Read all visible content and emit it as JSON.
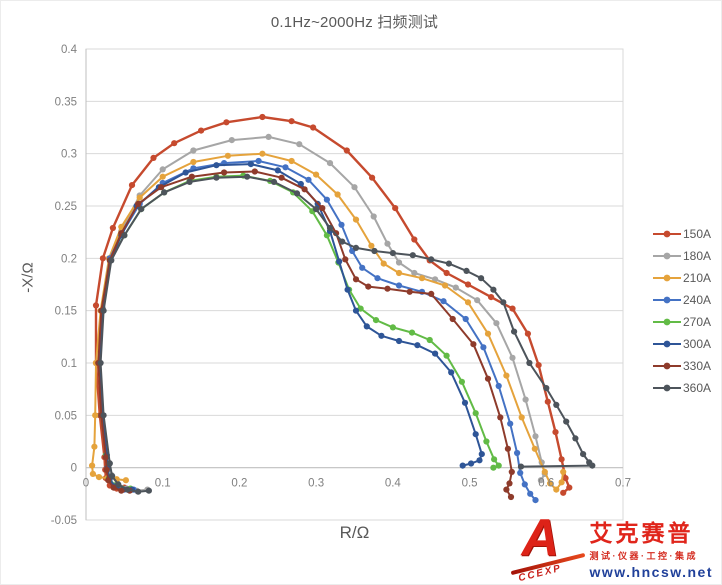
{
  "chart_data": {
    "type": "line",
    "title": "0.1Hz~2000Hz 扫频测试",
    "xlabel": "R/Ω",
    "ylabel": "-X/Ω",
    "xlim": [
      0,
      0.7
    ],
    "ylim": [
      -0.05,
      0.4
    ],
    "x_tick_labels": [
      "0",
      "0.1",
      "0.2",
      "0.3",
      "0.4",
      "0.5",
      "0.6",
      "0.7"
    ],
    "y_tick_labels": [
      "-0.05",
      "0",
      "0.05",
      "0.1",
      "0.15",
      "0.2",
      "0.25",
      "0.3",
      "0.35",
      "0.4"
    ],
    "grid": "horizontal",
    "legend_position": "right",
    "grid_color": "#d9d9d9",
    "axis_color": "#bfbfbf",
    "tick_text_color": "#808080",
    "series": [
      {
        "name": "150A",
        "color": "#c64a2e",
        "points": [
          [
            0.05,
            -0.019
          ],
          [
            0.04,
            -0.02
          ],
          [
            0.031,
            -0.017
          ],
          [
            0.026,
            -0.01
          ],
          [
            0.025,
            -0.002
          ],
          [
            0.024,
            0.01
          ],
          [
            0.018,
            0.05
          ],
          [
            0.013,
            0.1
          ],
          [
            0.013,
            0.155
          ],
          [
            0.022,
            0.2
          ],
          [
            0.035,
            0.229
          ],
          [
            0.06,
            0.27
          ],
          [
            0.088,
            0.296
          ],
          [
            0.115,
            0.31
          ],
          [
            0.15,
            0.322
          ],
          [
            0.183,
            0.33
          ],
          [
            0.23,
            0.335
          ],
          [
            0.268,
            0.331
          ],
          [
            0.296,
            0.325
          ],
          [
            0.34,
            0.303
          ],
          [
            0.373,
            0.277
          ],
          [
            0.403,
            0.248
          ],
          [
            0.428,
            0.218
          ],
          [
            0.448,
            0.198
          ],
          [
            0.47,
            0.186
          ],
          [
            0.498,
            0.175
          ],
          [
            0.528,
            0.163
          ],
          [
            0.556,
            0.152
          ],
          [
            0.576,
            0.128
          ],
          [
            0.59,
            0.098
          ],
          [
            0.602,
            0.063
          ],
          [
            0.612,
            0.034
          ],
          [
            0.62,
            0.008
          ],
          [
            0.625,
            -0.01
          ],
          [
            0.63,
            -0.019
          ],
          [
            0.622,
            -0.024
          ]
        ]
      },
      {
        "name": "180A",
        "color": "#a6a6a6",
        "points": [
          [
            0.08,
            -0.021
          ],
          [
            0.066,
            -0.022
          ],
          [
            0.053,
            -0.02
          ],
          [
            0.041,
            -0.015
          ],
          [
            0.033,
            -0.007
          ],
          [
            0.03,
            0.005
          ],
          [
            0.022,
            0.05
          ],
          [
            0.018,
            0.1
          ],
          [
            0.022,
            0.152
          ],
          [
            0.032,
            0.2
          ],
          [
            0.046,
            0.226
          ],
          [
            0.07,
            0.26
          ],
          [
            0.1,
            0.285
          ],
          [
            0.14,
            0.303
          ],
          [
            0.19,
            0.313
          ],
          [
            0.238,
            0.316
          ],
          [
            0.278,
            0.309
          ],
          [
            0.318,
            0.291
          ],
          [
            0.35,
            0.268
          ],
          [
            0.375,
            0.24
          ],
          [
            0.393,
            0.214
          ],
          [
            0.408,
            0.196
          ],
          [
            0.428,
            0.186
          ],
          [
            0.455,
            0.18
          ],
          [
            0.482,
            0.172
          ],
          [
            0.51,
            0.16
          ],
          [
            0.535,
            0.138
          ],
          [
            0.556,
            0.105
          ],
          [
            0.573,
            0.065
          ],
          [
            0.586,
            0.03
          ],
          [
            0.594,
            0.005
          ],
          [
            0.598,
            -0.006
          ],
          [
            0.593,
            -0.012
          ]
        ]
      },
      {
        "name": "210A",
        "color": "#e5a33c",
        "points": [
          [
            0.052,
            -0.012
          ],
          [
            0.04,
            -0.011
          ],
          [
            0.028,
            -0.01
          ],
          [
            0.017,
            -0.009
          ],
          [
            0.009,
            -0.006
          ],
          [
            0.008,
            0.002
          ],
          [
            0.011,
            0.02
          ],
          [
            0.012,
            0.05
          ],
          [
            0.013,
            0.1
          ],
          [
            0.019,
            0.15
          ],
          [
            0.03,
            0.2
          ],
          [
            0.046,
            0.23
          ],
          [
            0.07,
            0.258
          ],
          [
            0.1,
            0.278
          ],
          [
            0.14,
            0.292
          ],
          [
            0.185,
            0.298
          ],
          [
            0.23,
            0.3
          ],
          [
            0.268,
            0.293
          ],
          [
            0.3,
            0.28
          ],
          [
            0.328,
            0.261
          ],
          [
            0.352,
            0.237
          ],
          [
            0.372,
            0.212
          ],
          [
            0.388,
            0.195
          ],
          [
            0.408,
            0.186
          ],
          [
            0.438,
            0.181
          ],
          [
            0.468,
            0.174
          ],
          [
            0.498,
            0.158
          ],
          [
            0.524,
            0.128
          ],
          [
            0.548,
            0.088
          ],
          [
            0.568,
            0.048
          ],
          [
            0.585,
            0.018
          ],
          [
            0.598,
            -0.004
          ],
          [
            0.605,
            -0.015
          ],
          [
            0.613,
            -0.021
          ],
          [
            0.62,
            -0.014
          ],
          [
            0.622,
            -0.004
          ]
        ]
      },
      {
        "name": "240A",
        "color": "#4472c4",
        "points": [
          [
            0.062,
            -0.021
          ],
          [
            0.05,
            -0.021
          ],
          [
            0.039,
            -0.018
          ],
          [
            0.031,
            -0.011
          ],
          [
            0.028,
            -0.002
          ],
          [
            0.027,
            0.012
          ],
          [
            0.02,
            0.05
          ],
          [
            0.017,
            0.1
          ],
          [
            0.021,
            0.15
          ],
          [
            0.031,
            0.2
          ],
          [
            0.047,
            0.224
          ],
          [
            0.07,
            0.252
          ],
          [
            0.1,
            0.272
          ],
          [
            0.14,
            0.286
          ],
          [
            0.18,
            0.291
          ],
          [
            0.225,
            0.293
          ],
          [
            0.26,
            0.287
          ],
          [
            0.29,
            0.275
          ],
          [
            0.314,
            0.256
          ],
          [
            0.333,
            0.232
          ],
          [
            0.347,
            0.207
          ],
          [
            0.36,
            0.191
          ],
          [
            0.38,
            0.181
          ],
          [
            0.408,
            0.174
          ],
          [
            0.438,
            0.168
          ],
          [
            0.466,
            0.159
          ],
          [
            0.495,
            0.142
          ],
          [
            0.518,
            0.115
          ],
          [
            0.538,
            0.078
          ],
          [
            0.553,
            0.042
          ],
          [
            0.562,
            0.014
          ],
          [
            0.566,
            -0.005
          ],
          [
            0.572,
            -0.016
          ],
          [
            0.579,
            -0.025
          ],
          [
            0.586,
            -0.031
          ]
        ]
      },
      {
        "name": "270A",
        "color": "#62bb46",
        "points": [
          [
            0.058,
            -0.02
          ],
          [
            0.047,
            -0.02
          ],
          [
            0.037,
            -0.017
          ],
          [
            0.03,
            -0.01
          ],
          [
            0.028,
            0.0
          ],
          [
            0.026,
            0.012
          ],
          [
            0.02,
            0.05
          ],
          [
            0.017,
            0.1
          ],
          [
            0.021,
            0.15
          ],
          [
            0.032,
            0.198
          ],
          [
            0.05,
            0.222
          ],
          [
            0.072,
            0.247
          ],
          [
            0.102,
            0.263
          ],
          [
            0.135,
            0.274
          ],
          [
            0.17,
            0.278
          ],
          [
            0.205,
            0.279
          ],
          [
            0.24,
            0.274
          ],
          [
            0.27,
            0.263
          ],
          [
            0.295,
            0.245
          ],
          [
            0.314,
            0.222
          ],
          [
            0.329,
            0.196
          ],
          [
            0.343,
            0.17
          ],
          [
            0.358,
            0.152
          ],
          [
            0.378,
            0.141
          ],
          [
            0.4,
            0.134
          ],
          [
            0.425,
            0.129
          ],
          [
            0.448,
            0.122
          ],
          [
            0.47,
            0.107
          ],
          [
            0.49,
            0.082
          ],
          [
            0.508,
            0.052
          ],
          [
            0.522,
            0.025
          ],
          [
            0.532,
            0.008
          ],
          [
            0.538,
            0.002
          ],
          [
            0.531,
            0.0
          ]
        ]
      },
      {
        "name": "300A",
        "color": "#2e5597",
        "points": [
          [
            0.06,
            -0.021
          ],
          [
            0.048,
            -0.021
          ],
          [
            0.038,
            -0.018
          ],
          [
            0.03,
            -0.011
          ],
          [
            0.028,
            0.0
          ],
          [
            0.027,
            0.012
          ],
          [
            0.021,
            0.05
          ],
          [
            0.018,
            0.1
          ],
          [
            0.022,
            0.15
          ],
          [
            0.032,
            0.198
          ],
          [
            0.046,
            0.222
          ],
          [
            0.066,
            0.25
          ],
          [
            0.095,
            0.268
          ],
          [
            0.13,
            0.282
          ],
          [
            0.17,
            0.289
          ],
          [
            0.215,
            0.29
          ],
          [
            0.25,
            0.284
          ],
          [
            0.28,
            0.271
          ],
          [
            0.302,
            0.252
          ],
          [
            0.318,
            0.226
          ],
          [
            0.33,
            0.197
          ],
          [
            0.341,
            0.17
          ],
          [
            0.352,
            0.15
          ],
          [
            0.366,
            0.135
          ],
          [
            0.385,
            0.126
          ],
          [
            0.408,
            0.121
          ],
          [
            0.432,
            0.117
          ],
          [
            0.455,
            0.109
          ],
          [
            0.476,
            0.091
          ],
          [
            0.494,
            0.062
          ],
          [
            0.508,
            0.032
          ],
          [
            0.516,
            0.013
          ],
          [
            0.513,
            0.007
          ],
          [
            0.502,
            0.004
          ],
          [
            0.491,
            0.002
          ]
        ]
      },
      {
        "name": "330A",
        "color": "#8e3b2b",
        "points": [
          [
            0.057,
            -0.022
          ],
          [
            0.046,
            -0.022
          ],
          [
            0.036,
            -0.019
          ],
          [
            0.029,
            -0.012
          ],
          [
            0.027,
            -0.002
          ],
          [
            0.026,
            0.01
          ],
          [
            0.02,
            0.05
          ],
          [
            0.016,
            0.1
          ],
          [
            0.02,
            0.15
          ],
          [
            0.031,
            0.198
          ],
          [
            0.046,
            0.224
          ],
          [
            0.068,
            0.252
          ],
          [
            0.098,
            0.268
          ],
          [
            0.138,
            0.278
          ],
          [
            0.18,
            0.282
          ],
          [
            0.22,
            0.283
          ],
          [
            0.255,
            0.277
          ],
          [
            0.285,
            0.266
          ],
          [
            0.308,
            0.248
          ],
          [
            0.326,
            0.224
          ],
          [
            0.338,
            0.199
          ],
          [
            0.352,
            0.18
          ],
          [
            0.368,
            0.173
          ],
          [
            0.393,
            0.171
          ],
          [
            0.422,
            0.168
          ],
          [
            0.45,
            0.166
          ],
          [
            0.478,
            0.142
          ],
          [
            0.505,
            0.118
          ],
          [
            0.524,
            0.085
          ],
          [
            0.54,
            0.048
          ],
          [
            0.55,
            0.018
          ],
          [
            0.555,
            -0.004
          ],
          [
            0.552,
            -0.015
          ],
          [
            0.548,
            -0.021
          ],
          [
            0.554,
            -0.028
          ]
        ]
      },
      {
        "name": "360A",
        "color": "#4d545b",
        "points": [
          [
            0.082,
            -0.022
          ],
          [
            0.068,
            -0.023
          ],
          [
            0.054,
            -0.021
          ],
          [
            0.042,
            -0.016
          ],
          [
            0.034,
            -0.008
          ],
          [
            0.031,
            0.004
          ],
          [
            0.023,
            0.05
          ],
          [
            0.019,
            0.1
          ],
          [
            0.023,
            0.15
          ],
          [
            0.033,
            0.198
          ],
          [
            0.05,
            0.222
          ],
          [
            0.072,
            0.247
          ],
          [
            0.102,
            0.263
          ],
          [
            0.135,
            0.273
          ],
          [
            0.17,
            0.277
          ],
          [
            0.21,
            0.278
          ],
          [
            0.245,
            0.273
          ],
          [
            0.275,
            0.262
          ],
          [
            0.3,
            0.247
          ],
          [
            0.318,
            0.229
          ],
          [
            0.334,
            0.216
          ],
          [
            0.352,
            0.21
          ],
          [
            0.376,
            0.207
          ],
          [
            0.4,
            0.205
          ],
          [
            0.426,
            0.203
          ],
          [
            0.45,
            0.199
          ],
          [
            0.473,
            0.195
          ],
          [
            0.496,
            0.188
          ],
          [
            0.515,
            0.181
          ],
          [
            0.531,
            0.17
          ],
          [
            0.544,
            0.158
          ],
          [
            0.558,
            0.13
          ],
          [
            0.578,
            0.1
          ],
          [
            0.6,
            0.076
          ],
          [
            0.613,
            0.06
          ],
          [
            0.626,
            0.044
          ],
          [
            0.638,
            0.028
          ],
          [
            0.648,
            0.013
          ],
          [
            0.656,
            0.005
          ],
          [
            0.66,
            0.002
          ],
          [
            0.567,
            0.001
          ]
        ]
      }
    ]
  },
  "logo": {
    "monogram": "A",
    "monogram_sub": "CCEXP",
    "brand": "艾克赛普",
    "tagline": "测试·仪器·工控·集成",
    "url": "www.hncsw.net"
  }
}
